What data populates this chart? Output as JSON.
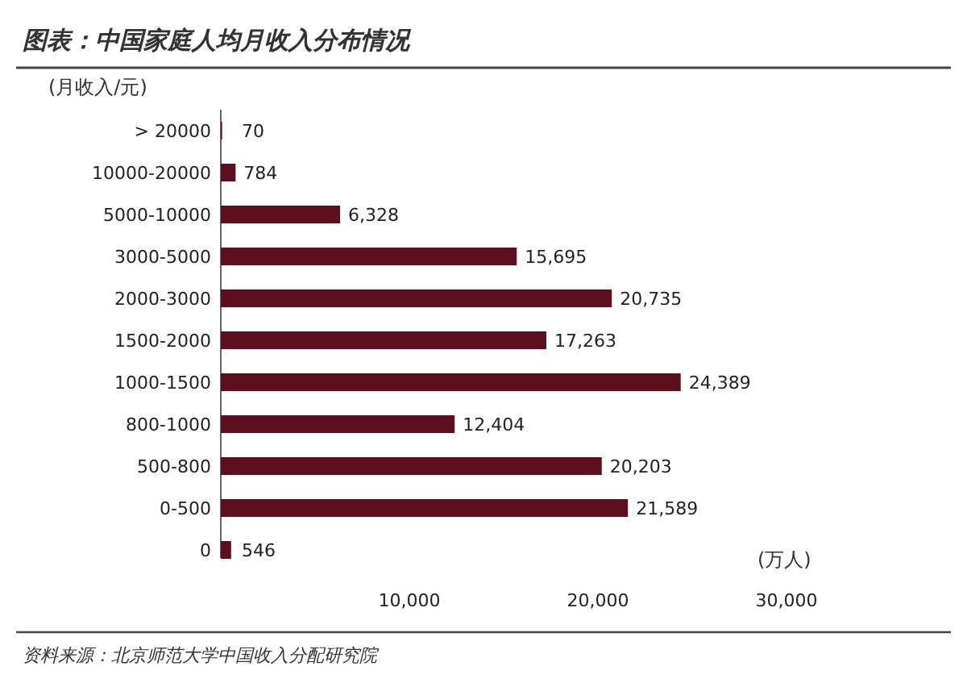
{
  "chart_data": {
    "type": "bar",
    "orientation": "horizontal",
    "title": "图表：中国家庭人均月收入分布情况",
    "ylabel": "(月收入/元)",
    "xlabel": "(万人)",
    "annotations": [
      "资料来源：北京师范大学中国收入分配研究院"
    ],
    "categories": [
      "> 20000",
      "10000-20000",
      "5000-10000",
      "3000-5000",
      "2000-3000",
      "1500-2000",
      "1000-1500",
      "800-1000",
      "500-800",
      "0-500",
      "0"
    ],
    "values": [
      70,
      784,
      6328,
      15695,
      20735,
      17263,
      24389,
      12404,
      20203,
      21589,
      546
    ],
    "value_labels": [
      "70",
      "784",
      "6,328",
      "15,695",
      "20,735",
      "17,263",
      "24,389",
      "12,404",
      "20,203",
      "21,589",
      "546"
    ],
    "color": "#5c0f1c",
    "xlim": [
      0,
      30000
    ],
    "xticks": [
      {
        "value": 10000,
        "label": "10,000"
      },
      {
        "value": 20000,
        "label": "20,000"
      },
      {
        "value": 30000,
        "label": "30,000"
      }
    ]
  }
}
